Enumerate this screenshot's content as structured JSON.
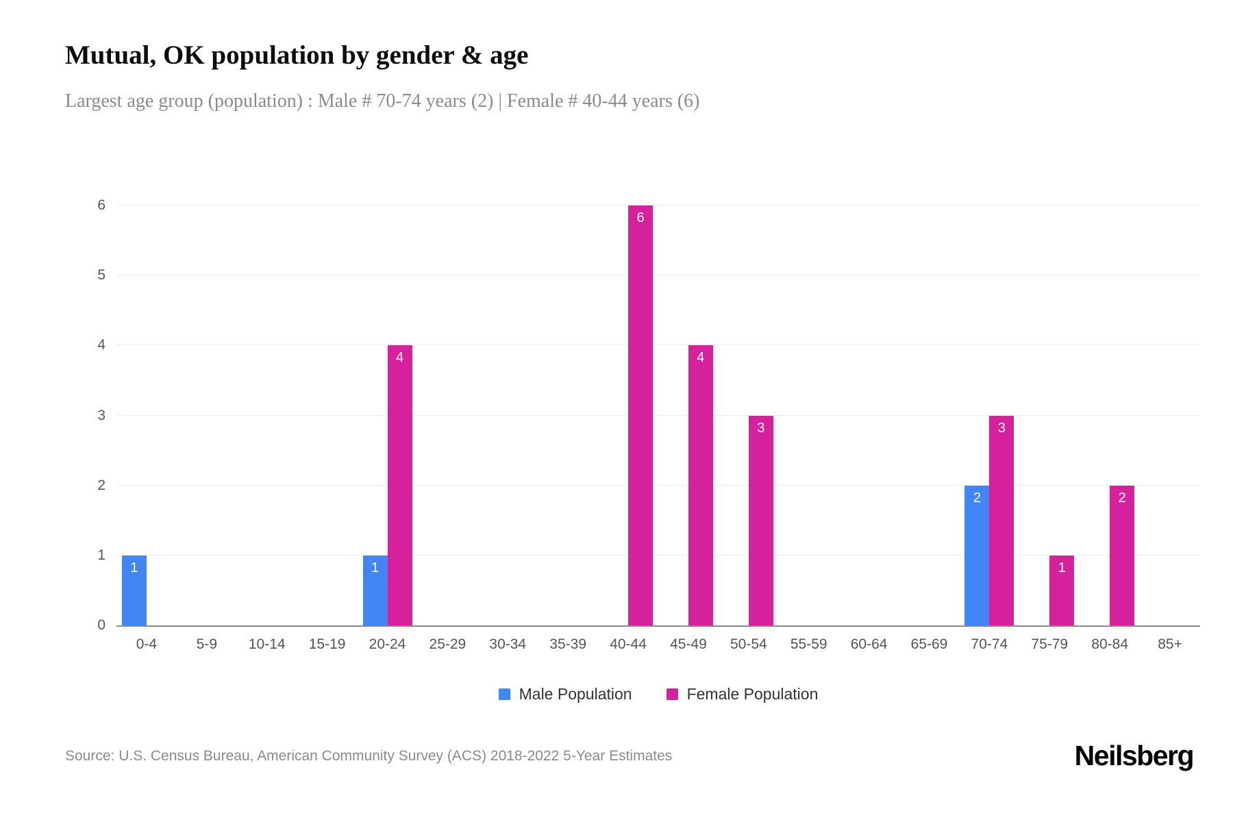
{
  "header": {
    "title": "Mutual, OK population by gender & age",
    "subtitle": "Largest age group (population) : Male # 70-74 years (2) | Female # 40-44 years (6)"
  },
  "chart_data": {
    "type": "bar",
    "title": "Mutual, OK population by gender & age",
    "categories": [
      "0-4",
      "5-9",
      "10-14",
      "15-19",
      "20-24",
      "25-29",
      "30-34",
      "35-39",
      "40-44",
      "45-49",
      "50-54",
      "55-59",
      "60-64",
      "65-69",
      "70-74",
      "75-79",
      "80-84",
      "85+"
    ],
    "series": [
      {
        "name": "Male Population",
        "color": "#4285f4",
        "values": [
          1,
          0,
          0,
          0,
          1,
          0,
          0,
          0,
          0,
          0,
          0,
          0,
          0,
          0,
          2,
          0,
          0,
          0
        ]
      },
      {
        "name": "Female Population",
        "color": "#d6219c",
        "values": [
          0,
          0,
          0,
          0,
          4,
          0,
          0,
          0,
          6,
          4,
          3,
          0,
          0,
          0,
          3,
          1,
          2,
          0
        ]
      }
    ],
    "xlabel": "",
    "ylabel": "",
    "ylim": [
      0,
      6
    ],
    "yticks": [
      0,
      1,
      2,
      3,
      4,
      5,
      6
    ],
    "grid": "horizontal",
    "legend_position": "bottom",
    "bar_value_labels": "inside-top, white"
  },
  "footer": {
    "source": "Source: U.S. Census Bureau, American Community Survey (ACS) 2018-2022 5-Year Estimates",
    "logo": "Neilsberg"
  }
}
